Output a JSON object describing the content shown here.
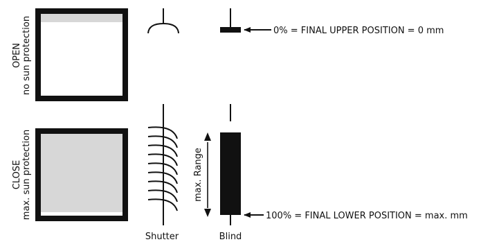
{
  "states": {
    "open": {
      "label_line1": "OPEN",
      "label_line2": "no sun protection"
    },
    "close": {
      "label_line1": "CLOSE",
      "label_line2": "max. sun protection"
    }
  },
  "annotations": {
    "upper": "0% = FINAL UPPER POSITION = 0 mm",
    "lower": "100% = FINAL LOWER POSITION = max. mm",
    "range": "max. Range"
  },
  "captions": {
    "shutter": "Shutter",
    "blind": "Blind"
  },
  "colors": {
    "frame": "#111111",
    "shade": "#d7d7d7",
    "background": "#ffffff"
  }
}
